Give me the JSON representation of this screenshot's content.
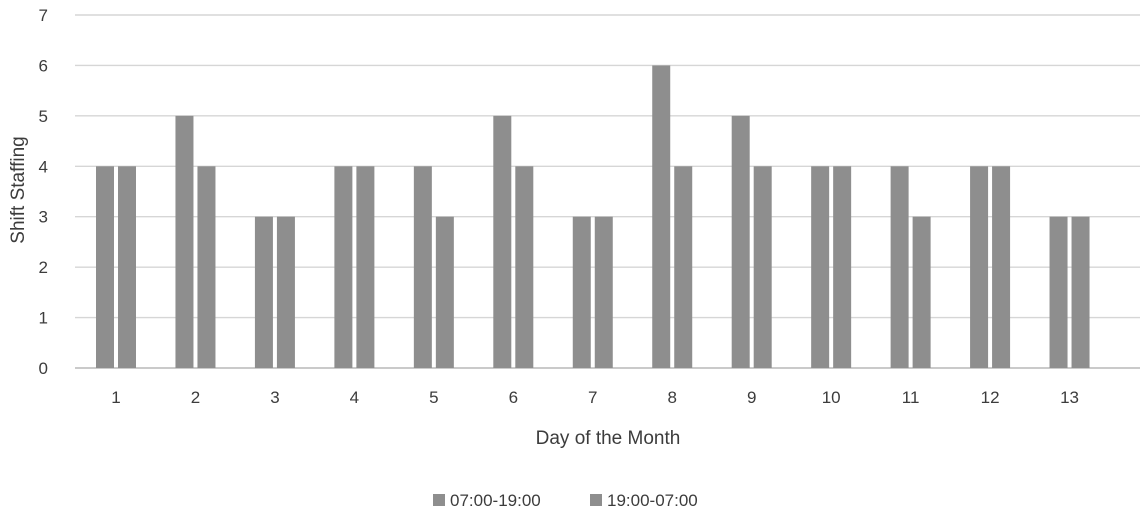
{
  "chart_data": {
    "type": "bar",
    "title": "",
    "xlabel": "Day of the Month",
    "ylabel": "Shift Staffing",
    "ylim": [
      0,
      7
    ],
    "yticks": [
      0,
      1,
      2,
      3,
      4,
      5,
      6,
      7
    ],
    "grid": true,
    "legend_position": "bottom",
    "categories": [
      "1",
      "2",
      "3",
      "4",
      "5",
      "6",
      "7",
      "8",
      "9",
      "10",
      "11",
      "12",
      "13"
    ],
    "series": [
      {
        "name": "07:00-19:00",
        "color": "#8e8e8e",
        "values": [
          4,
          5,
          3,
          4,
          4,
          5,
          3,
          6,
          5,
          4,
          4,
          4,
          3
        ]
      },
      {
        "name": "19:00-07:00",
        "color": "#8e8e8e",
        "values": [
          4,
          4,
          3,
          4,
          3,
          4,
          3,
          4,
          4,
          4,
          3,
          4,
          3
        ]
      }
    ]
  }
}
